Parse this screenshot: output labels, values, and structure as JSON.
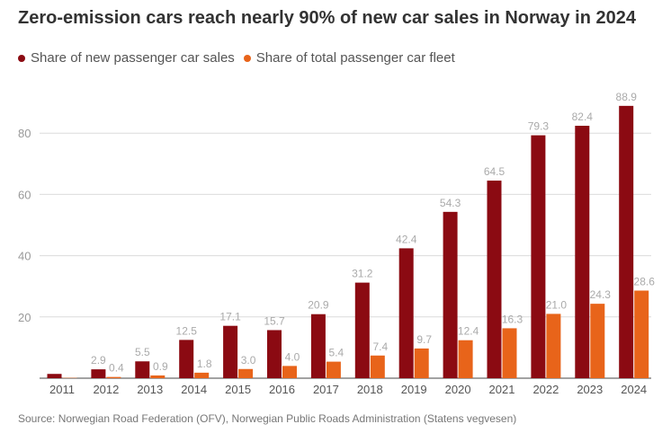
{
  "chart_data": {
    "type": "bar",
    "title": "Zero-emission cars reach nearly 90% of new car sales in Norway in 2024",
    "categories": [
      "2011",
      "2012",
      "2013",
      "2014",
      "2015",
      "2016",
      "2017",
      "2018",
      "2019",
      "2020",
      "2021",
      "2022",
      "2023",
      "2024"
    ],
    "series": [
      {
        "name": "Share of new passenger car sales",
        "color": "#8b0a12",
        "values": [
          1.4,
          2.9,
          5.5,
          12.5,
          17.1,
          15.7,
          20.9,
          31.2,
          42.4,
          54.3,
          64.5,
          79.3,
          82.4,
          88.9
        ],
        "labels": [
          "",
          "2.9",
          "5.5",
          "12.5",
          "17.1",
          "15.7",
          "20.9",
          "31.2",
          "42.4",
          "54.3",
          "64.5",
          "79.3",
          "82.4",
          "88.9"
        ]
      },
      {
        "name": "Share of total passenger car fleet",
        "color": "#e8641a",
        "values": [
          0.1,
          0.4,
          0.9,
          1.8,
          3.0,
          4.0,
          5.4,
          7.4,
          9.7,
          12.4,
          16.3,
          21.0,
          24.3,
          28.6
        ],
        "labels": [
          "",
          "0.4",
          "0.9",
          "1.8",
          "3.0",
          "4.0",
          "5.4",
          "7.4",
          "9.7",
          "12.4",
          "16.3",
          "21.0",
          "24.3",
          "28.6"
        ]
      }
    ],
    "yticks": [
      "20",
      "40",
      "60",
      "80"
    ],
    "ylim": [
      0,
      92
    ],
    "xlabel": "",
    "ylabel": "",
    "grid": true,
    "legend": "top-left"
  },
  "source": "Source: Norwegian Road Federation (OFV), Norwegian Public Roads Administration (Statens vegvesen)"
}
